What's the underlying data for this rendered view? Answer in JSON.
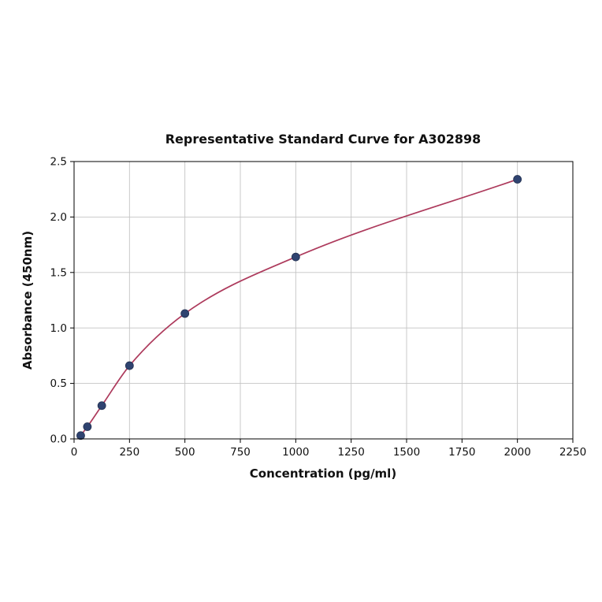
{
  "chart_data": {
    "type": "scatter",
    "title": "Representative Standard Curve for A302898",
    "xlabel": "Concentration (pg/ml)",
    "ylabel": "Absorbance (450nm)",
    "xlim": [
      0,
      2250
    ],
    "ylim": [
      0,
      2.5
    ],
    "xticks": [
      0,
      250,
      500,
      750,
      1000,
      1250,
      1500,
      1750,
      2000,
      2250
    ],
    "yticks": [
      0.0,
      0.5,
      1.0,
      1.5,
      2.0,
      2.5
    ],
    "grid": true,
    "legend": "none",
    "points": [
      {
        "x": 30,
        "y": 0.03
      },
      {
        "x": 60,
        "y": 0.11
      },
      {
        "x": 125,
        "y": 0.3
      },
      {
        "x": 250,
        "y": 0.66
      },
      {
        "x": 500,
        "y": 1.13
      },
      {
        "x": 1000,
        "y": 1.64
      },
      {
        "x": 2000,
        "y": 2.34
      }
    ],
    "curve_color": "#ad3a5c",
    "point_color": "#2f4370",
    "grid_color": "#c4c4c4",
    "border_color": "#000000",
    "background": "#ffffff"
  }
}
